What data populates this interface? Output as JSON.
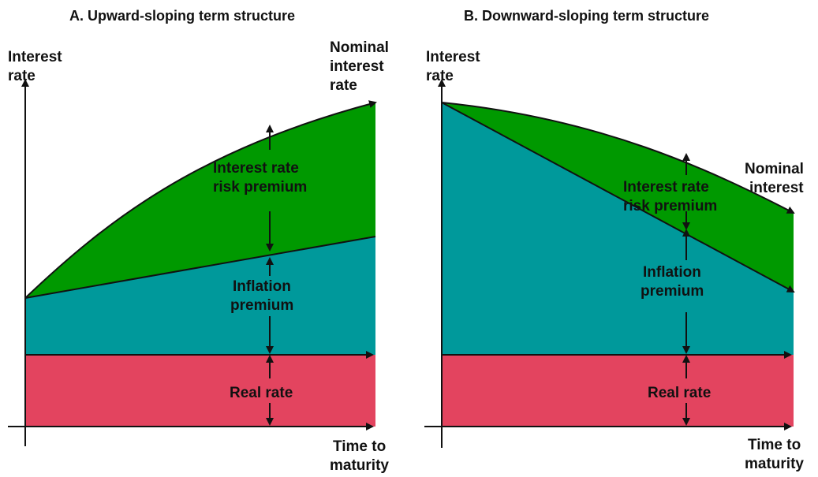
{
  "colors": {
    "real": "#E3445F",
    "inflation": "#00999B",
    "risk": "#009900",
    "line": "#111111",
    "background": "#FFFFFF"
  },
  "panelA": {
    "title": "A. Upward-sloping term structure",
    "y_axis": [
      "Interest",
      "rate"
    ],
    "nominal": [
      "Nominal",
      "interest",
      "rate"
    ],
    "band_risk": [
      "Interest rate",
      "risk premium"
    ],
    "band_inflation": [
      "Inflation",
      "premium"
    ],
    "band_real": "Real rate",
    "x_axis": [
      "Time to",
      "maturity"
    ]
  },
  "panelB": {
    "title": "B. Downward-sloping term structure",
    "y_axis": [
      "Interest",
      "rate"
    ],
    "nominal": [
      "Nominal",
      "interest"
    ],
    "band_risk": [
      "Interest rate",
      "risk premium"
    ],
    "band_inflation": [
      "Inflation",
      "premium"
    ],
    "band_real": "Real rate",
    "x_axis": [
      "Time to",
      "maturity"
    ]
  }
}
